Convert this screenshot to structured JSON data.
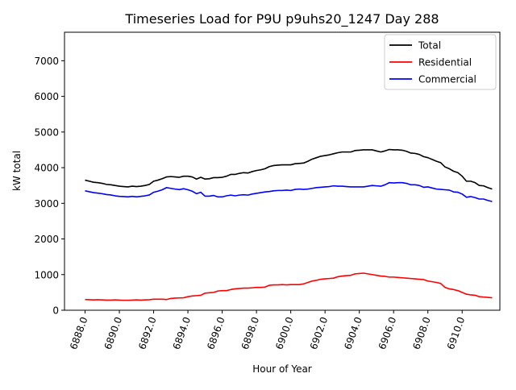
{
  "chart_data": {
    "type": "line",
    "title": "Timeseries Load for P9U p9uhs20_1247  Day 288",
    "xlabel": "Hour of Year",
    "ylabel": "kW total",
    "xlim": [
      6886.8,
      6912.2
    ],
    "ylim": [
      0,
      7800
    ],
    "x_ticks": [
      6888.0,
      6890.0,
      6892.0,
      6894.0,
      6896.0,
      6898.0,
      6900.0,
      6902.0,
      6904.0,
      6906.0,
      6908.0,
      6910.0
    ],
    "x_tick_labels": [
      "6888.0",
      "6890.0",
      "6892.0",
      "6894.0",
      "6896.0",
      "6898.0",
      "6900.0",
      "6902.0",
      "6904.0",
      "6906.0",
      "6908.0",
      "6910.0"
    ],
    "y_ticks": [
      0,
      1000,
      2000,
      3000,
      4000,
      5000,
      6000,
      7000
    ],
    "y_tick_labels": [
      "0",
      "1000",
      "2000",
      "3000",
      "4000",
      "5000",
      "6000",
      "7000"
    ],
    "grid": false,
    "legend_position": "top-right",
    "x": [
      6888.0,
      6888.25,
      6888.5,
      6888.75,
      6889.0,
      6889.25,
      6889.5,
      6889.75,
      6890.0,
      6890.25,
      6890.5,
      6890.75,
      6891.0,
      6891.25,
      6891.5,
      6891.75,
      6892.0,
      6892.25,
      6892.5,
      6892.75,
      6893.0,
      6893.25,
      6893.5,
      6893.75,
      6894.0,
      6894.25,
      6894.5,
      6894.75,
      6895.0,
      6895.25,
      6895.5,
      6895.75,
      6896.0,
      6896.25,
      6896.5,
      6896.75,
      6897.0,
      6897.25,
      6897.5,
      6897.75,
      6898.0,
      6898.25,
      6898.5,
      6898.75,
      6899.0,
      6899.25,
      6899.5,
      6899.75,
      6900.0,
      6900.25,
      6900.5,
      6900.75,
      6901.0,
      6901.25,
      6901.5,
      6901.75,
      6902.0,
      6902.25,
      6902.5,
      6902.75,
      6903.0,
      6903.25,
      6903.5,
      6903.75,
      6904.0,
      6904.25,
      6904.5,
      6904.75,
      6905.0,
      6905.25,
      6905.5,
      6905.75,
      6906.0,
      6906.25,
      6906.5,
      6906.75,
      6907.0,
      6907.25,
      6907.5,
      6907.75,
      6908.0,
      6908.25,
      6908.5,
      6908.75,
      6909.0,
      6909.25,
      6909.5,
      6909.75,
      6910.0,
      6910.25,
      6910.5,
      6910.75,
      6911.0,
      6911.25,
      6911.5,
      6911.75
    ],
    "series": [
      {
        "name": "Total",
        "color": "#000000",
        "values": [
          3650,
          3620,
          3590,
          3580,
          3560,
          3530,
          3520,
          3500,
          3480,
          3470,
          3460,
          3480,
          3470,
          3480,
          3500,
          3530,
          3620,
          3650,
          3690,
          3740,
          3750,
          3740,
          3730,
          3760,
          3760,
          3740,
          3680,
          3730,
          3680,
          3690,
          3720,
          3720,
          3730,
          3760,
          3810,
          3810,
          3840,
          3860,
          3850,
          3890,
          3920,
          3940,
          3970,
          4030,
          4060,
          4070,
          4080,
          4080,
          4080,
          4110,
          4120,
          4130,
          4180,
          4240,
          4280,
          4320,
          4340,
          4360,
          4390,
          4420,
          4440,
          4440,
          4440,
          4480,
          4490,
          4500,
          4500,
          4500,
          4470,
          4440,
          4470,
          4510,
          4500,
          4500,
          4490,
          4460,
          4410,
          4400,
          4370,
          4310,
          4280,
          4230,
          4180,
          4140,
          4020,
          3970,
          3900,
          3860,
          3760,
          3620,
          3620,
          3580,
          3500,
          3490,
          3440,
          3400
        ]
      },
      {
        "name": "Residential",
        "color": "#ff0000",
        "values": [
          300,
          295,
          290,
          295,
          290,
          285,
          285,
          290,
          285,
          280,
          280,
          285,
          290,
          285,
          290,
          295,
          310,
          310,
          310,
          300,
          330,
          340,
          345,
          350,
          380,
          400,
          410,
          420,
          480,
          490,
          500,
          540,
          550,
          550,
          580,
          600,
          610,
          620,
          620,
          630,
          640,
          640,
          650,
          700,
          710,
          710,
          720,
          710,
          720,
          720,
          720,
          740,
          780,
          820,
          840,
          870,
          880,
          890,
          900,
          940,
          960,
          970,
          980,
          1020,
          1030,
          1040,
          1020,
          1000,
          980,
          960,
          950,
          930,
          930,
          920,
          910,
          900,
          890,
          880,
          870,
          860,
          820,
          800,
          780,
          750,
          640,
          600,
          580,
          550,
          500,
          450,
          430,
          420,
          380,
          370,
          360,
          350
        ]
      },
      {
        "name": "Commercial",
        "color": "#0000ff",
        "values": [
          3350,
          3325,
          3300,
          3285,
          3270,
          3245,
          3235,
          3210,
          3195,
          3190,
          3180,
          3195,
          3180,
          3195,
          3210,
          3235,
          3310,
          3340,
          3380,
          3440,
          3420,
          3400,
          3385,
          3410,
          3380,
          3340,
          3270,
          3310,
          3200,
          3200,
          3220,
          3180,
          3180,
          3210,
          3230,
          3210,
          3230,
          3240,
          3230,
          3260,
          3280,
          3300,
          3320,
          3330,
          3350,
          3360,
          3360,
          3370,
          3360,
          3390,
          3400,
          3390,
          3400,
          3420,
          3440,
          3450,
          3460,
          3470,
          3490,
          3480,
          3480,
          3470,
          3460,
          3460,
          3460,
          3460,
          3480,
          3500,
          3490,
          3480,
          3520,
          3580,
          3570,
          3580,
          3580,
          3560,
          3520,
          3520,
          3500,
          3450,
          3460,
          3430,
          3400,
          3390,
          3380,
          3370,
          3320,
          3310,
          3260,
          3170,
          3190,
          3160,
          3120,
          3120,
          3080,
          3050
        ]
      }
    ]
  }
}
